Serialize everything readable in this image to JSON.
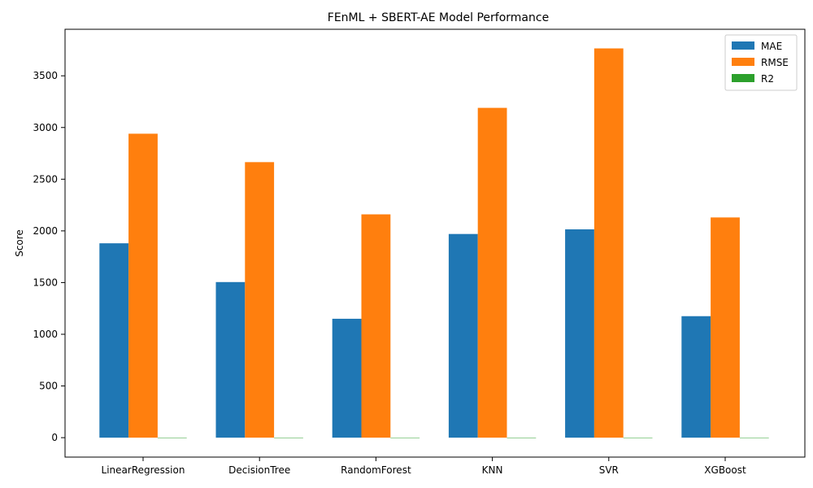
{
  "chart_data": {
    "type": "bar",
    "title": "FEnML + SBERT-AE Model Performance",
    "xlabel": "",
    "ylabel": "Score",
    "categories": [
      "LinearRegression",
      "DecisionTree",
      "RandomForest",
      "KNN",
      "SVR",
      "XGBoost"
    ],
    "series": [
      {
        "name": "MAE",
        "color": "#1f77b4",
        "values": [
          1880,
          1505,
          1150,
          1970,
          2015,
          1175
        ]
      },
      {
        "name": "RMSE",
        "color": "#ff7f0e",
        "values": [
          2940,
          2665,
          2160,
          3190,
          3765,
          2130
        ]
      },
      {
        "name": "R2",
        "color": "#2ca02c",
        "values": [
          0.7,
          0.75,
          0.84,
          0.65,
          0.52,
          0.84
        ]
      }
    ],
    "yticks": [
      0,
      500,
      1000,
      1500,
      2000,
      2500,
      3000,
      3500
    ],
    "ylim": [
      -188,
      3950
    ],
    "grid": false,
    "legend": "top-right"
  }
}
